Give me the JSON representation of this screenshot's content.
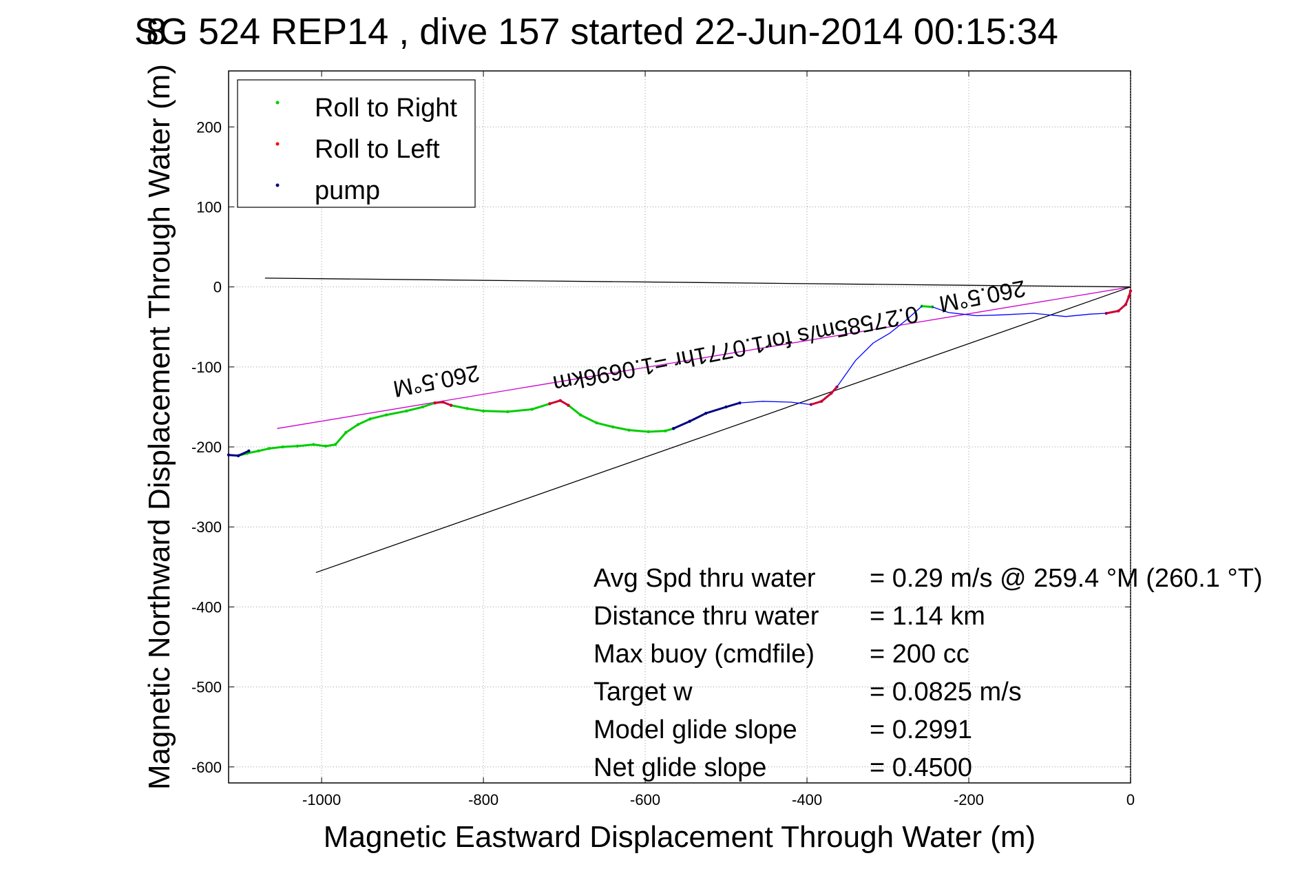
{
  "chart_data": {
    "type": "line",
    "title": "SG 524   REP14  , dive 157 started 22-Jun-2014 00:15:34",
    "title_overlap_glyph": "8",
    "xlabel": "Magnetic Eastward Displacement Through Water (m)",
    "ylabel": "Magnetic Northward Displacement Through Water (m)",
    "xlim": [
      -1115,
      0
    ],
    "ylim": [
      -620,
      270
    ],
    "xticks": [
      -1000,
      -800,
      -600,
      -400,
      -200,
      0
    ],
    "yticks": [
      200,
      100,
      0,
      -100,
      -200,
      -300,
      -400,
      -500,
      -600
    ],
    "grid": true,
    "legend": {
      "placement": "top-left",
      "entries": [
        {
          "label": "Roll to Right",
          "color": "#00cc00"
        },
        {
          "label": "Roll to Left",
          "color": "#ff0000"
        },
        {
          "label": "pump",
          "color": "#000080"
        }
      ]
    },
    "series": [
      {
        "name": "Roll to Right",
        "color": "#00cc00",
        "segments": [
          [
            [
              -1103,
              -211
            ],
            [
              -1092,
              -208
            ],
            [
              -1078,
              -205
            ],
            [
              -1065,
              -202
            ],
            [
              -1048,
              -200
            ],
            [
              -1030,
              -199
            ],
            [
              -1010,
              -197
            ],
            [
              -995,
              -199
            ],
            [
              -983,
              -197
            ],
            [
              -970,
              -182
            ],
            [
              -955,
              -172
            ],
            [
              -940,
              -165
            ],
            [
              -920,
              -160
            ],
            [
              -895,
              -155
            ],
            [
              -875,
              -150
            ],
            [
              -860,
              -145
            ]
          ],
          [
            [
              -840,
              -148
            ],
            [
              -820,
              -152
            ],
            [
              -800,
              -155
            ],
            [
              -770,
              -156
            ],
            [
              -740,
              -153
            ],
            [
              -718,
              -146
            ]
          ],
          [
            [
              -695,
              -148
            ],
            [
              -680,
              -160
            ],
            [
              -660,
              -170
            ],
            [
              -640,
              -175
            ],
            [
              -620,
              -179
            ],
            [
              -596,
              -181
            ],
            [
              -575,
              -180
            ],
            [
              -565,
              -177
            ]
          ],
          [
            [
              -258,
              -24
            ],
            [
              -245,
              -25
            ]
          ]
        ]
      },
      {
        "name": "Roll to Left",
        "color": "#cc0033",
        "segments": [
          [
            [
              -860,
              -145
            ],
            [
              -850,
              -144
            ],
            [
              -840,
              -148
            ]
          ],
          [
            [
              -718,
              -146
            ],
            [
              -705,
              -142
            ],
            [
              -695,
              -148
            ]
          ],
          [
            [
              -395,
              -147
            ],
            [
              -382,
              -143
            ],
            [
              -370,
              -133
            ],
            [
              -363,
              -125
            ]
          ],
          [
            [
              -30,
              -33
            ],
            [
              -15,
              -30
            ],
            [
              -6,
              -22
            ],
            [
              -2,
              -12
            ],
            [
              0,
              -5
            ]
          ]
        ]
      },
      {
        "name": "pump",
        "color": "#000080",
        "segments": [
          [
            [
              -1115,
              -210
            ],
            [
              -1103,
              -211
            ],
            [
              -1090,
              -205
            ]
          ],
          [
            [
              -565,
              -177
            ],
            [
              -545,
              -168
            ],
            [
              -525,
              -158
            ],
            [
              -500,
              -150
            ],
            [
              -483,
              -145
            ]
          ]
        ]
      },
      {
        "name": "",
        "color": "#0000ff",
        "segments": [
          [
            [
              -483,
              -145
            ],
            [
              -455,
              -143
            ],
            [
              -420,
              -144
            ],
            [
              -395,
              -147
            ]
          ],
          [
            [
              -363,
              -125
            ],
            [
              -340,
              -92
            ],
            [
              -318,
              -70
            ],
            [
              -298,
              -58
            ],
            [
              -278,
              -42
            ],
            [
              -258,
              -24
            ]
          ],
          [
            [
              -245,
              -25
            ],
            [
              -225,
              -32
            ],
            [
              -190,
              -36
            ],
            [
              -160,
              -35
            ],
            [
              -120,
              -33
            ],
            [
              -80,
              -37
            ],
            [
              -50,
              -34
            ],
            [
              -30,
              -33
            ]
          ]
        ]
      }
    ],
    "lines": [
      {
        "color": "#cc00cc",
        "from": [
          -1055,
          -177
        ],
        "to": [
          0,
          0
        ]
      },
      {
        "color": "#000000",
        "from": [
          -1070,
          11
        ],
        "to": [
          0,
          0
        ]
      },
      {
        "color": "#000000",
        "from": [
          -1007,
          -357
        ],
        "to": [
          0,
          0
        ]
      }
    ],
    "annotations": [
      {
        "text": "260.5°M",
        "x": -860,
        "y": -108,
        "rotation": 169
      },
      {
        "text": "260.5°M",
        "x": -185,
        "y": -2,
        "rotation": 169
      },
      {
        "text": "0.27585m/s for1.0771hr =1.0696km",
        "x": -490,
        "y": -68,
        "rotation": 169
      }
    ],
    "stats": [
      {
        "label": "Avg Spd thru water",
        "value": "=  0.29 m/s @ 259.4 °M (260.1 °T)"
      },
      {
        "label": "Distance thru water",
        "value": "=  1.14 km"
      },
      {
        "label": "Max buoy (cmdfile)",
        "value": "= 200 cc"
      },
      {
        "label": "Target w",
        "value": "= 0.0825 m/s"
      },
      {
        "label": "Model glide slope",
        "value": "= 0.2991"
      },
      {
        "label": "Net glide slope",
        "value": "= 0.4500"
      }
    ]
  }
}
